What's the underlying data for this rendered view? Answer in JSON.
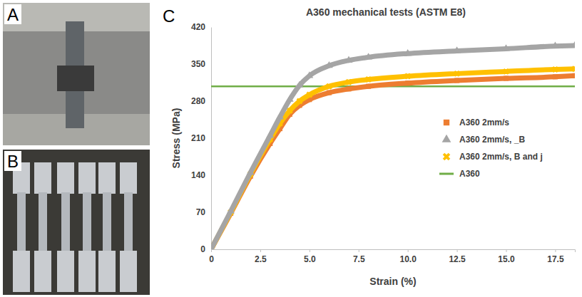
{
  "panels": [
    {
      "label": "A"
    },
    {
      "label": "B"
    },
    {
      "label": "C"
    }
  ],
  "chart_data": {
    "type": "line",
    "title": "A360 mechanical tests (ASTM E8)",
    "x_label": "Strain (%)",
    "y_label": "Stress (MPa)",
    "x": [
      0,
      1,
      2,
      3,
      3.5,
      4,
      4.5,
      5,
      6,
      7,
      8,
      10,
      12.5,
      15,
      17.5,
      18.5
    ],
    "xlim": [
      0,
      18.5
    ],
    "xticks": [
      0,
      2.5,
      {
        "value": 5,
        "label": "5.0"
      },
      7.5,
      {
        "value": 10,
        "label": "10.0"
      },
      12.5,
      {
        "value": 15,
        "label": "15.0"
      },
      17.5
    ],
    "ylim": [
      0,
      420
    ],
    "yticks": [
      0,
      70,
      140,
      210,
      280,
      350,
      420
    ],
    "grid": false,
    "legend": "right",
    "series": [
      {
        "name": "A360 2mm/s",
        "color": "#ed7d31",
        "marker": "square",
        "line_style": "solid",
        "values": [
          0,
          68,
          138,
          200,
          228,
          255,
          272,
          283,
          296,
          303,
          308,
          314,
          319,
          323,
          326,
          328
        ]
      },
      {
        "name": "A360 2mm/s, _B",
        "color": "#a5a5a5",
        "marker": "triangle",
        "line_style": "solid",
        "values": [
          0,
          72,
          145,
          215,
          250,
          283,
          310,
          328,
          347,
          357,
          363,
          370,
          375,
          379,
          384,
          385
        ]
      },
      {
        "name": "A360 2mm/s, B and j",
        "color": "#ffc000",
        "marker": "x",
        "line_style": "solid",
        "values": [
          0,
          70,
          142,
          208,
          238,
          262,
          280,
          292,
          308,
          316,
          321,
          327,
          332,
          336,
          340,
          341
        ]
      },
      {
        "name": "A360",
        "color": "#70ad47",
        "marker": "none",
        "line_style": "solid",
        "values": [
          308,
          308,
          308,
          308,
          308,
          308,
          308,
          308,
          308,
          308,
          308,
          308,
          308,
          308,
          308,
          308
        ]
      }
    ]
  }
}
